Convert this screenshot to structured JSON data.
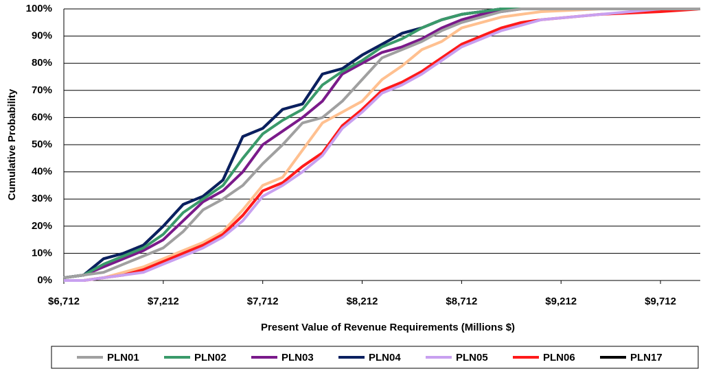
{
  "chart_data": {
    "type": "line",
    "xlabel": "Present Value of Revenue Requirements  (Millions $)",
    "ylabel": "Cumulative Probability",
    "x": [
      6712,
      6812,
      6912,
      7012,
      7112,
      7212,
      7312,
      7412,
      7512,
      7612,
      7712,
      7812,
      7912,
      8012,
      8112,
      8212,
      8312,
      8412,
      8512,
      8612,
      8712,
      8812,
      8912,
      9012,
      9112,
      9412,
      9712,
      9912
    ],
    "series": [
      {
        "name": "PLN01",
        "color": "#a0a0a0",
        "values": [
          1,
          2,
          3,
          6,
          9,
          12,
          18,
          26,
          30,
          35,
          43,
          50,
          58,
          60,
          66,
          74,
          82,
          85,
          88,
          92,
          95,
          97,
          99,
          100,
          100,
          100,
          100,
          100
        ]
      },
      {
        "name": "PLN02",
        "color": "#3a9a6a",
        "values": [
          1,
          2,
          6,
          9,
          12,
          17,
          25,
          30,
          35,
          45,
          54,
          59,
          63,
          72,
          77,
          81,
          86,
          89,
          93,
          96,
          98,
          99,
          100,
          100,
          100,
          100,
          100,
          100
        ]
      },
      {
        "name": "PLN03",
        "color": "#7a1a8a",
        "values": [
          1,
          2,
          5,
          8,
          11,
          15,
          22,
          29,
          33,
          40,
          50,
          55,
          60,
          66,
          76,
          80,
          84,
          86,
          89,
          93,
          96,
          98,
          99,
          100,
          100,
          100,
          100,
          100
        ]
      },
      {
        "name": "PLN04",
        "color": "#0a2060",
        "values": [
          1,
          2,
          8,
          10,
          13,
          20,
          28,
          31,
          37,
          53,
          56,
          63,
          65,
          76,
          78,
          83,
          87,
          91,
          93,
          96,
          98,
          99,
          100,
          100,
          100,
          100,
          100,
          100
        ]
      },
      {
        "name": "PLN05",
        "color": "#c8a0f0",
        "values": [
          0,
          0,
          1,
          2,
          3,
          6,
          9,
          12,
          16,
          22,
          31,
          35,
          40,
          46,
          56,
          62,
          69,
          72,
          76,
          81,
          86,
          89,
          92,
          94,
          96,
          98,
          100,
          100
        ]
      },
      {
        "name": "PLN06",
        "color": "#ff1a1a",
        "values": [
          0,
          0,
          1,
          2,
          4,
          7,
          10,
          13,
          17,
          24,
          33,
          36,
          42,
          47,
          57,
          63,
          70,
          73,
          77,
          82,
          87,
          90,
          93,
          95,
          96,
          98,
          99,
          100
        ]
      },
      {
        "name": "PLN17",
        "color": "#000000",
        "values": [
          1,
          2,
          8,
          10,
          13,
          20,
          28,
          31,
          37,
          53,
          56,
          63,
          65,
          76,
          78,
          83,
          87,
          91,
          93,
          96,
          98,
          99,
          100,
          100,
          100,
          100,
          100,
          100
        ]
      },
      {
        "color": "#ffc090",
        "values": [
          0,
          0,
          1,
          3,
          5,
          8,
          11,
          14,
          18,
          26,
          35,
          38,
          48,
          58,
          62,
          66,
          74,
          79,
          85,
          88,
          93,
          95,
          97,
          98,
          99,
          100,
          100,
          100
        ]
      }
    ],
    "xlim": [
      6712,
      9912
    ],
    "xticks": [
      {
        "value": 6712,
        "label": "$6,712"
      },
      {
        "value": 7212,
        "label": "$7,212"
      },
      {
        "value": 7712,
        "label": "$7,712"
      },
      {
        "value": 8212,
        "label": "$8,212"
      },
      {
        "value": 8712,
        "label": "$8,712"
      },
      {
        "value": 9212,
        "label": "$9,212"
      },
      {
        "value": 9712,
        "label": "$9,712"
      }
    ],
    "ylim": [
      0,
      100
    ],
    "yticks": [
      {
        "value": 0,
        "label": "0%"
      },
      {
        "value": 10,
        "label": "10%"
      },
      {
        "value": 20,
        "label": "20%"
      },
      {
        "value": 30,
        "label": "30%"
      },
      {
        "value": 40,
        "label": "40%"
      },
      {
        "value": 50,
        "label": "50%"
      },
      {
        "value": 60,
        "label": "60%"
      },
      {
        "value": 70,
        "label": "70%"
      },
      {
        "value": 80,
        "label": "80%"
      },
      {
        "value": 90,
        "label": "90%"
      },
      {
        "value": 100,
        "label": "100%"
      }
    ],
    "grid": true,
    "legend": "bottom"
  }
}
